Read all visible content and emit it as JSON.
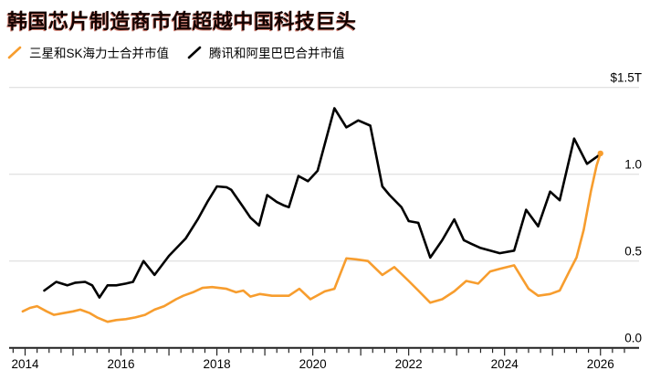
{
  "header": {
    "title": "韩国芯片制造商市值超越中国科技巨头"
  },
  "legend": {
    "items": [
      {
        "label": "三星和SK海力士合并市值",
        "color": "#f79d2e"
      },
      {
        "label": "腾讯和阿里巴巴合并市值",
        "color": "#000000"
      }
    ]
  },
  "colors": {
    "background": "#ffffff",
    "title_text": "#140200",
    "accent_orange": "#f79d2e",
    "series_black": "#000000",
    "grid": "#d8d8d8",
    "axis": "#222222",
    "tick_text": "#000000"
  },
  "chart_data": {
    "type": "line",
    "title": "韩国芯片制造商市值超越中国科技巨头",
    "ylabel": "",
    "xlabel": "",
    "unit": "USD trillions",
    "grid": true,
    "legend_position": "top-left",
    "y_axis": {
      "side": "right",
      "range": [
        0,
        1.5
      ],
      "ticks": [
        {
          "value": 1.5,
          "label": "$1.5T"
        },
        {
          "value": 1.0,
          "label": "1.0"
        },
        {
          "value": 0.5,
          "label": "0.5"
        },
        {
          "value": 0.0,
          "label": "0.0"
        }
      ]
    },
    "x_axis": {
      "range": [
        2013.8,
        2026.6
      ],
      "minor_tick_step": 0.25,
      "labels": [
        {
          "label": "2014",
          "year": 2014
        },
        {
          "label": "2016",
          "year": 2016
        },
        {
          "label": "2018",
          "year": 2018
        },
        {
          "label": "2020",
          "year": 2020
        },
        {
          "label": "2022",
          "year": 2022
        },
        {
          "label": "2024",
          "year": 2024
        },
        {
          "label": "2026",
          "year": 2026
        }
      ]
    },
    "series": [
      {
        "id": "tencent-alibaba",
        "name": "腾讯和阿里巴巴合并市值",
        "color": "#000000",
        "end_dot": false,
        "points": [
          [
            2014.4,
            0.33
          ],
          [
            2014.65,
            0.38
          ],
          [
            2014.88,
            0.36
          ],
          [
            2015.05,
            0.375
          ],
          [
            2015.25,
            0.38
          ],
          [
            2015.4,
            0.36
          ],
          [
            2015.55,
            0.29
          ],
          [
            2015.72,
            0.36
          ],
          [
            2015.9,
            0.36
          ],
          [
            2016.1,
            0.37
          ],
          [
            2016.25,
            0.38
          ],
          [
            2016.47,
            0.5
          ],
          [
            2016.7,
            0.42
          ],
          [
            2017.0,
            0.53
          ],
          [
            2017.35,
            0.63
          ],
          [
            2017.6,
            0.74
          ],
          [
            2017.8,
            0.84
          ],
          [
            2018.0,
            0.93
          ],
          [
            2018.2,
            0.925
          ],
          [
            2018.3,
            0.91
          ],
          [
            2018.55,
            0.81
          ],
          [
            2018.7,
            0.75
          ],
          [
            2018.88,
            0.705
          ],
          [
            2019.05,
            0.88
          ],
          [
            2019.25,
            0.84
          ],
          [
            2019.4,
            0.82
          ],
          [
            2019.5,
            0.81
          ],
          [
            2019.7,
            0.99
          ],
          [
            2019.9,
            0.96
          ],
          [
            2020.1,
            1.02
          ],
          [
            2020.45,
            1.38
          ],
          [
            2020.7,
            1.27
          ],
          [
            2020.95,
            1.31
          ],
          [
            2021.2,
            1.28
          ],
          [
            2021.45,
            0.93
          ],
          [
            2021.6,
            0.88
          ],
          [
            2021.85,
            0.81
          ],
          [
            2022.0,
            0.73
          ],
          [
            2022.2,
            0.72
          ],
          [
            2022.45,
            0.52
          ],
          [
            2022.7,
            0.62
          ],
          [
            2022.95,
            0.74
          ],
          [
            2023.15,
            0.62
          ],
          [
            2023.3,
            0.6
          ],
          [
            2023.5,
            0.575
          ],
          [
            2023.7,
            0.56
          ],
          [
            2023.9,
            0.545
          ],
          [
            2024.2,
            0.56
          ],
          [
            2024.45,
            0.795
          ],
          [
            2024.7,
            0.7
          ],
          [
            2024.95,
            0.9
          ],
          [
            2025.15,
            0.85
          ],
          [
            2025.45,
            1.205
          ],
          [
            2025.72,
            1.06
          ],
          [
            2026.0,
            1.115
          ]
        ]
      },
      {
        "id": "samsung-skhynix",
        "name": "三星和SK海力士合并市值",
        "color": "#f79d2e",
        "end_dot": true,
        "points": [
          [
            2013.95,
            0.21
          ],
          [
            2014.1,
            0.23
          ],
          [
            2014.25,
            0.24
          ],
          [
            2014.45,
            0.21
          ],
          [
            2014.6,
            0.19
          ],
          [
            2014.8,
            0.2
          ],
          [
            2015.0,
            0.21
          ],
          [
            2015.15,
            0.22
          ],
          [
            2015.35,
            0.2
          ],
          [
            2015.5,
            0.175
          ],
          [
            2015.72,
            0.15
          ],
          [
            2015.9,
            0.16
          ],
          [
            2016.1,
            0.165
          ],
          [
            2016.3,
            0.175
          ],
          [
            2016.5,
            0.19
          ],
          [
            2016.7,
            0.22
          ],
          [
            2016.9,
            0.24
          ],
          [
            2017.15,
            0.28
          ],
          [
            2017.3,
            0.3
          ],
          [
            2017.5,
            0.32
          ],
          [
            2017.7,
            0.345
          ],
          [
            2017.9,
            0.35
          ],
          [
            2018.2,
            0.34
          ],
          [
            2018.4,
            0.32
          ],
          [
            2018.55,
            0.33
          ],
          [
            2018.7,
            0.295
          ],
          [
            2018.9,
            0.31
          ],
          [
            2019.15,
            0.3
          ],
          [
            2019.5,
            0.3
          ],
          [
            2019.72,
            0.34
          ],
          [
            2019.95,
            0.28
          ],
          [
            2020.25,
            0.325
          ],
          [
            2020.45,
            0.34
          ],
          [
            2020.7,
            0.515
          ],
          [
            2020.9,
            0.51
          ],
          [
            2021.15,
            0.5
          ],
          [
            2021.45,
            0.42
          ],
          [
            2021.7,
            0.465
          ],
          [
            2022.0,
            0.385
          ],
          [
            2022.2,
            0.33
          ],
          [
            2022.45,
            0.26
          ],
          [
            2022.7,
            0.28
          ],
          [
            2022.95,
            0.325
          ],
          [
            2023.2,
            0.385
          ],
          [
            2023.45,
            0.37
          ],
          [
            2023.7,
            0.44
          ],
          [
            2023.9,
            0.455
          ],
          [
            2024.2,
            0.475
          ],
          [
            2024.5,
            0.34
          ],
          [
            2024.7,
            0.3
          ],
          [
            2024.95,
            0.31
          ],
          [
            2025.15,
            0.33
          ],
          [
            2025.35,
            0.44
          ],
          [
            2025.5,
            0.52
          ],
          [
            2025.65,
            0.68
          ],
          [
            2025.8,
            0.9
          ],
          [
            2025.92,
            1.05
          ],
          [
            2026.0,
            1.12
          ]
        ]
      }
    ]
  }
}
